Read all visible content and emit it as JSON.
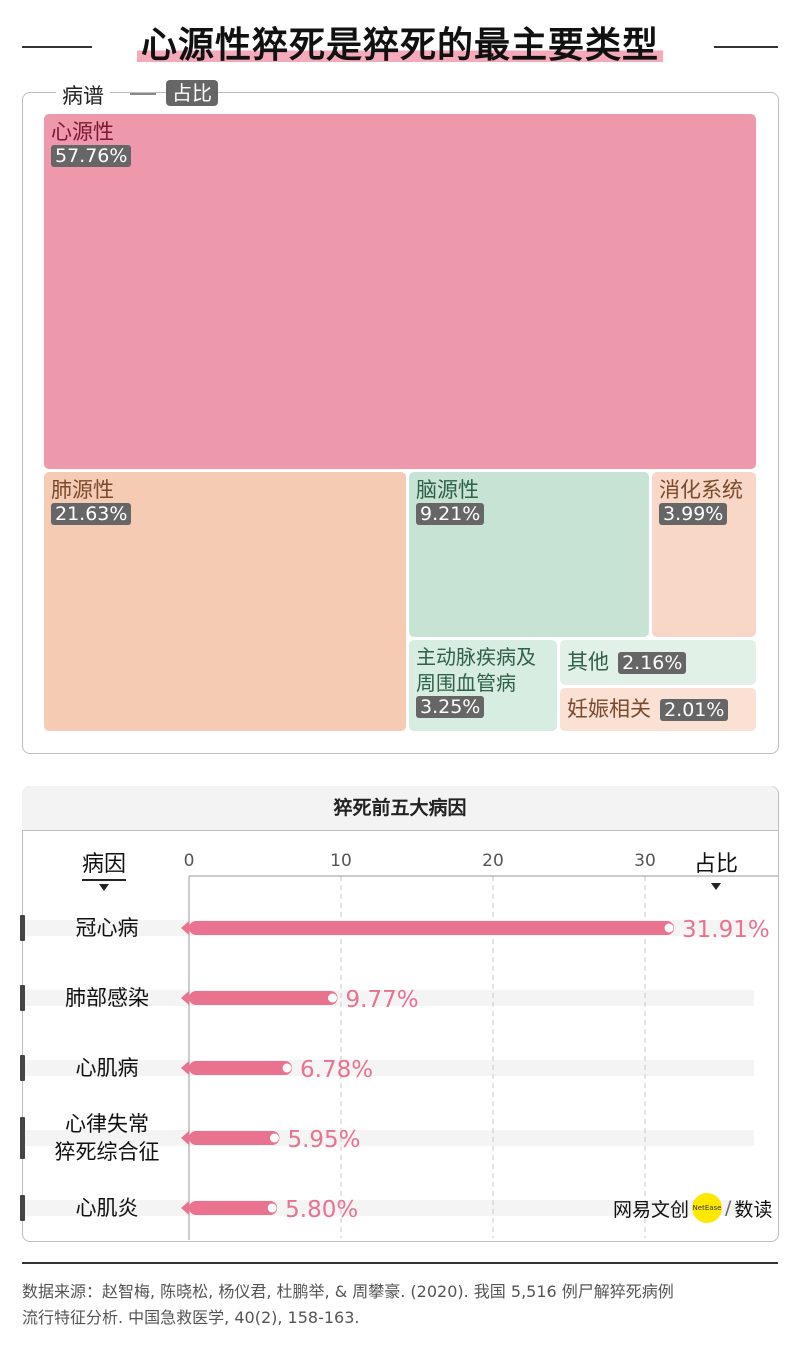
{
  "title": "心源性猝死是猝死的最主要类型",
  "treemap": {
    "legend_name": "病谱",
    "legend_badge": "占比",
    "tiles": [
      {
        "name": "心源性",
        "value": "57.76%"
      },
      {
        "name": "肺源性",
        "value": "21.63%"
      },
      {
        "name": "脑源性",
        "value": "9.21%"
      },
      {
        "name": "消化系统",
        "value": "3.99%"
      },
      {
        "name_line1": "主动脉疾病及",
        "name_line2": "周围血管病",
        "value": "3.25%"
      },
      {
        "name": "其他",
        "value": "2.16%"
      },
      {
        "name": "妊娠相关",
        "value": "2.01%"
      }
    ]
  },
  "bar_chart": {
    "title": "猝死前五大病因",
    "y_axis_title": "病因",
    "x_axis_title": "占比"
  },
  "chart_data": [
    {
      "type": "treemap",
      "categories": [
        "心源性",
        "肺源性",
        "脑源性",
        "消化系统",
        "主动脉疾病及周围血管病",
        "其他",
        "妊娠相关"
      ],
      "values": [
        57.76,
        21.63,
        9.21,
        3.99,
        3.25,
        2.16,
        2.01
      ],
      "colors": [
        "#ee98ac",
        "#f6cbb4",
        "#c7e3d4",
        "#f8d7c6",
        "#d8ede2",
        "#e2f1e8",
        "#fbe0d4"
      ]
    },
    {
      "type": "bar",
      "orientation": "horizontal",
      "title": "猝死前五大病因",
      "xlabel": "占比",
      "ylabel": "病因",
      "categories": [
        [
          "冠心病"
        ],
        [
          "肺部感染"
        ],
        [
          "心肌病"
        ],
        [
          "心律失常",
          "猝死综合征"
        ],
        [
          "心肌炎"
        ]
      ],
      "values": [
        31.91,
        9.77,
        6.78,
        5.95,
        5.8
      ],
      "value_labels": [
        "31.91%",
        "9.77%",
        "6.78%",
        "5.95%",
        "5.80%"
      ],
      "xlim": [
        0,
        37.5
      ],
      "xticks": [
        0,
        10,
        20,
        30
      ],
      "grid": "vertical-dashed",
      "bar_color": "#e9728e"
    }
  ],
  "brand": {
    "left": "网易文创",
    "dot": "NetEase",
    "right": "数读"
  },
  "source": {
    "line1": "数据来源：赵智梅, 陈晓松, 杨仪君, 杜鹏举, & 周攀豪. (2020). 我国 5,516 例尸解猝死病例",
    "line2": "流行特征分析. 中国急救医学, 40(2), 158-163."
  }
}
